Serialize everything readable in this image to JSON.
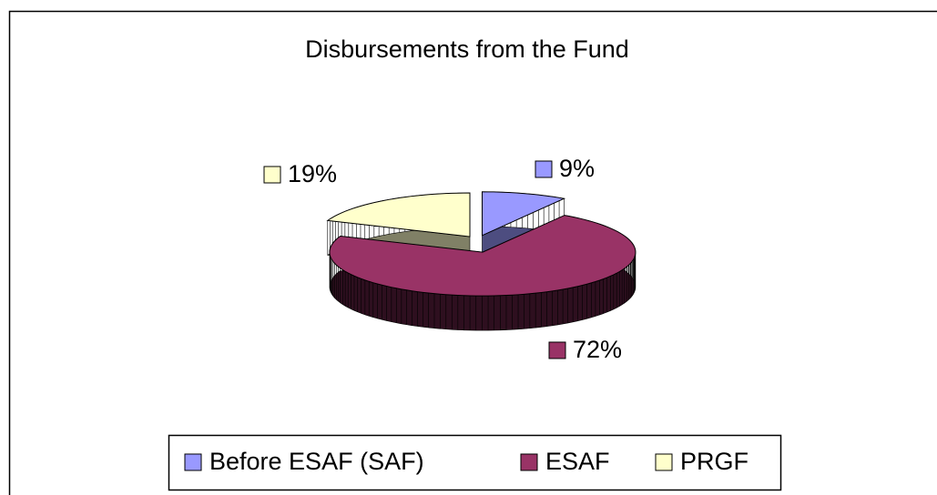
{
  "chart_data": {
    "type": "pie",
    "title": "Disbursements from the Fund",
    "categories": [
      "Before ESAF (SAF)",
      "ESAF",
      "PRGF"
    ],
    "values": [
      9,
      72,
      19
    ],
    "value_labels": [
      "9%",
      "72%",
      "19%"
    ],
    "colors": [
      "#9999ff",
      "#993366",
      "#ffffcc"
    ],
    "legend": "bottom"
  }
}
